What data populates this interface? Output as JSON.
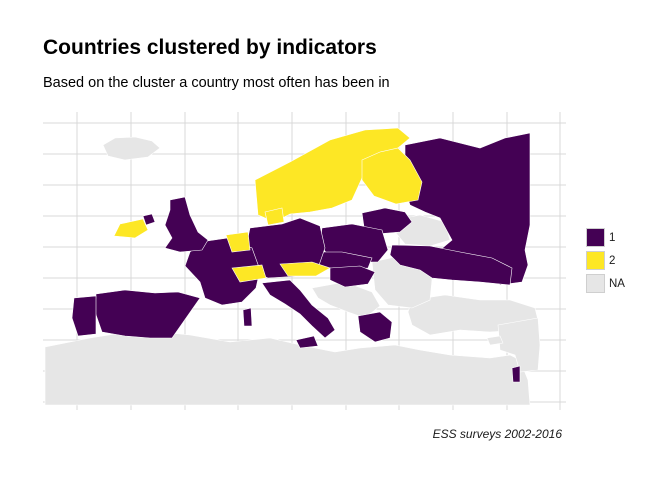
{
  "title": "Countries clustered by indicators",
  "subtitle": "Based on the cluster a country most often has been in",
  "caption": "ESS surveys 2002-2016",
  "legend": {
    "items": [
      {
        "label": "1",
        "color": "#440154"
      },
      {
        "label": "2",
        "color": "#fde725"
      },
      {
        "label": "NA",
        "color": "#e6e6e6"
      }
    ]
  },
  "colors": {
    "cluster_1": "#440154",
    "cluster_2": "#fde725",
    "na": "#e6e6e6",
    "grid": "#d9d9d9",
    "border": "#ffffff"
  },
  "chart_data": {
    "type": "map",
    "legend_position": "right",
    "grid": true,
    "clusters": {
      "1": [
        "Russia",
        "Estonia",
        "Latvia",
        "Lithuania",
        "Poland",
        "Czechia",
        "Slovakia",
        "Hungary",
        "Ukraine",
        "United Kingdom",
        "Belgium",
        "Germany",
        "France",
        "Spain",
        "Portugal",
        "Italy",
        "Slovenia",
        "Greece",
        "Israel",
        "Ireland (Northern)"
      ],
      "2": [
        "Norway",
        "Sweden",
        "Finland",
        "Denmark",
        "Netherlands",
        "Ireland",
        "Switzerland",
        "Austria"
      ],
      "NA": [
        "Iceland",
        "Belarus",
        "Romania",
        "Bulgaria",
        "Serbia",
        "Croatia",
        "Bosnia",
        "Albania",
        "Turkey",
        "Syria",
        "Iraq",
        "Morocco",
        "Algeria",
        "Tunisia",
        "Libya",
        "Egypt",
        "Jordan",
        "Cyprus"
      ]
    }
  }
}
